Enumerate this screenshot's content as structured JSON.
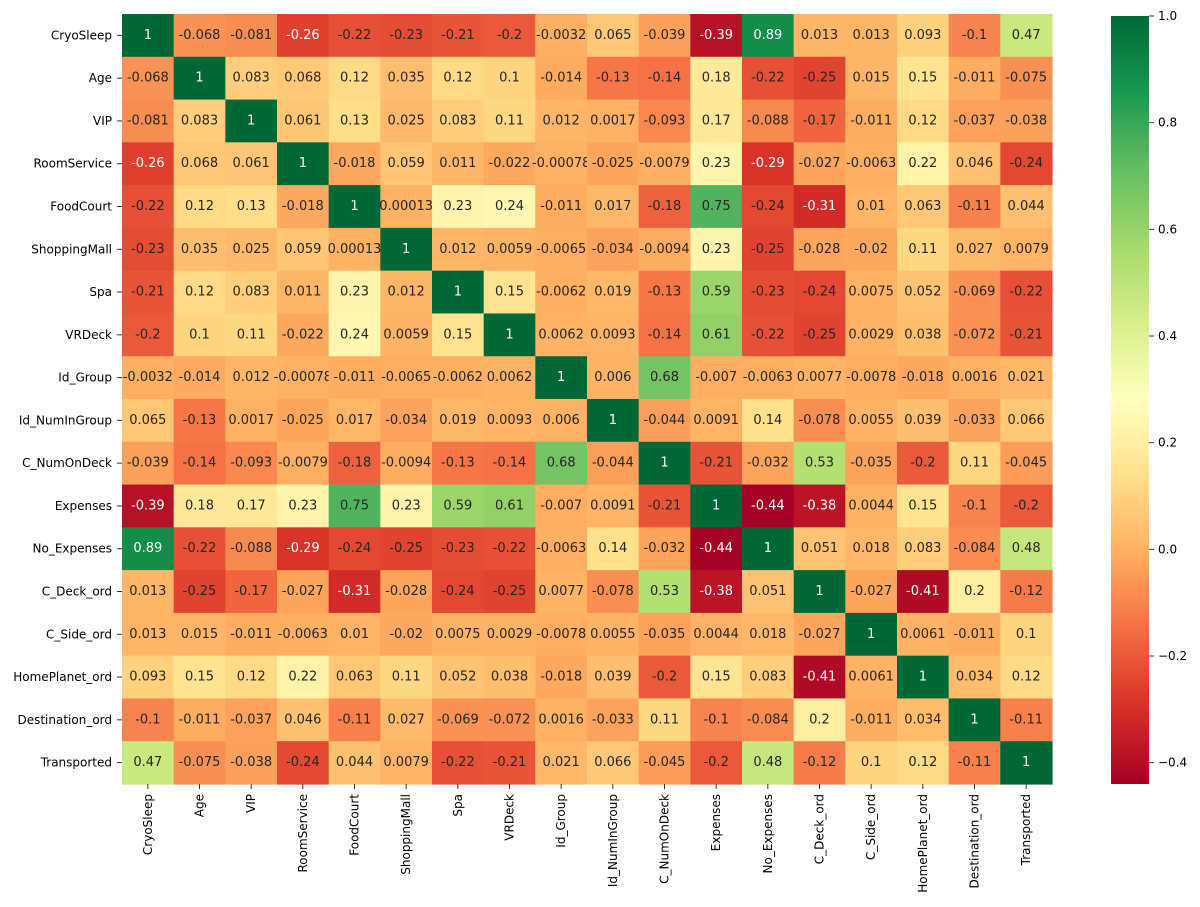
{
  "chart_data": {
    "type": "heatmap",
    "title": "",
    "xlabel": "",
    "ylabel": "",
    "colormap": "RdYlGn",
    "value_range": [
      -0.44,
      1.0
    ],
    "labels": [
      "CryoSleep",
      "Age",
      "VIP",
      "RoomService",
      "FoodCourt",
      "ShoppingMall",
      "Spa",
      "VRDeck",
      "Id_Group",
      "Id_NumInGroup",
      "C_NumOnDeck",
      "Expenses",
      "No_Expenses",
      "C_Deck_ord",
      "C_Side_ord",
      "HomePlanet_ord",
      "Destination_ord",
      "Transported"
    ],
    "matrix": [
      [
        1,
        -0.068,
        -0.081,
        -0.26,
        -0.22,
        -0.23,
        -0.21,
        -0.2,
        -0.0032,
        0.065,
        -0.039,
        -0.39,
        0.89,
        0.013,
        0.013,
        0.093,
        -0.1,
        0.47
      ],
      [
        -0.068,
        1,
        0.083,
        0.068,
        0.12,
        0.035,
        0.12,
        0.1,
        -0.014,
        -0.13,
        -0.14,
        0.18,
        -0.22,
        -0.25,
        0.015,
        0.15,
        -0.011,
        -0.075
      ],
      [
        -0.081,
        0.083,
        1,
        0.061,
        0.13,
        0.025,
        0.083,
        0.11,
        0.012,
        0.0017,
        -0.093,
        0.17,
        -0.088,
        -0.17,
        -0.011,
        0.12,
        -0.037,
        -0.038
      ],
      [
        -0.26,
        0.068,
        0.061,
        1,
        -0.018,
        0.059,
        0.011,
        -0.022,
        -0.00078,
        -0.025,
        -0.0079,
        0.23,
        -0.29,
        -0.027,
        -0.0063,
        0.22,
        0.046,
        -0.24
      ],
      [
        -0.22,
        0.12,
        0.13,
        -0.018,
        1,
        0.00013,
        0.23,
        0.24,
        -0.011,
        0.017,
        -0.18,
        0.75,
        -0.24,
        -0.31,
        0.01,
        0.063,
        -0.11,
        0.044
      ],
      [
        -0.23,
        0.035,
        0.025,
        0.059,
        0.00013,
        1,
        0.012,
        0.0059,
        -0.0065,
        -0.034,
        -0.0094,
        0.23,
        -0.25,
        -0.028,
        -0.02,
        0.11,
        0.027,
        0.0079
      ],
      [
        -0.21,
        0.12,
        0.083,
        0.011,
        0.23,
        0.012,
        1,
        0.15,
        -0.0062,
        0.019,
        -0.13,
        0.59,
        -0.23,
        -0.24,
        0.0075,
        0.052,
        -0.069,
        -0.22
      ],
      [
        -0.2,
        0.1,
        0.11,
        -0.022,
        0.24,
        0.0059,
        0.15,
        1,
        0.0062,
        0.0093,
        -0.14,
        0.61,
        -0.22,
        -0.25,
        0.0029,
        0.038,
        -0.072,
        -0.21
      ],
      [
        -0.0032,
        -0.014,
        0.012,
        -0.00078,
        -0.011,
        -0.0065,
        -0.0062,
        0.0062,
        1,
        0.006,
        0.68,
        -0.007,
        -0.0063,
        0.0077,
        -0.0078,
        -0.018,
        0.0016,
        0.021
      ],
      [
        0.065,
        -0.13,
        0.0017,
        -0.025,
        0.017,
        -0.034,
        0.019,
        0.0093,
        0.006,
        1,
        -0.044,
        0.0091,
        0.14,
        -0.078,
        0.0055,
        0.039,
        -0.033,
        0.066
      ],
      [
        -0.039,
        -0.14,
        -0.093,
        -0.0079,
        -0.18,
        -0.0094,
        -0.13,
        -0.14,
        0.68,
        -0.044,
        1,
        -0.21,
        -0.032,
        0.53,
        -0.035,
        -0.2,
        0.11,
        -0.045
      ],
      [
        -0.39,
        0.18,
        0.17,
        0.23,
        0.75,
        0.23,
        0.59,
        0.61,
        -0.007,
        0.0091,
        -0.21,
        1,
        -0.44,
        -0.38,
        0.0044,
        0.15,
        -0.1,
        -0.2
      ],
      [
        0.89,
        -0.22,
        -0.088,
        -0.29,
        -0.24,
        -0.25,
        -0.23,
        -0.22,
        -0.0063,
        0.14,
        -0.032,
        -0.44,
        1,
        0.051,
        0.018,
        0.083,
        -0.084,
        0.48
      ],
      [
        0.013,
        -0.25,
        -0.17,
        -0.027,
        -0.31,
        -0.028,
        -0.24,
        -0.25,
        0.0077,
        -0.078,
        0.53,
        -0.38,
        0.051,
        1,
        -0.027,
        -0.41,
        0.2,
        -0.12
      ],
      [
        0.013,
        0.015,
        -0.011,
        -0.0063,
        0.01,
        -0.02,
        0.0075,
        0.0029,
        -0.0078,
        0.0055,
        -0.035,
        0.0044,
        0.018,
        -0.027,
        1,
        0.0061,
        -0.011,
        0.1
      ],
      [
        0.093,
        0.15,
        0.12,
        0.22,
        0.063,
        0.11,
        0.052,
        0.038,
        -0.018,
        0.039,
        -0.2,
        0.15,
        0.083,
        -0.41,
        0.0061,
        1,
        0.034,
        0.12
      ],
      [
        -0.1,
        -0.011,
        -0.037,
        0.046,
        -0.11,
        0.027,
        -0.069,
        -0.072,
        0.0016,
        -0.033,
        0.11,
        -0.1,
        -0.084,
        0.2,
        -0.011,
        0.034,
        1,
        -0.11
      ],
      [
        0.47,
        -0.075,
        -0.038,
        -0.24,
        0.044,
        0.0079,
        -0.22,
        -0.21,
        0.021,
        0.066,
        -0.045,
        -0.2,
        0.48,
        -0.12,
        0.1,
        0.12,
        -0.11,
        1
      ]
    ],
    "colorbar": {
      "ticks": [
        -0.4,
        -0.2,
        0.0,
        0.2,
        0.4,
        0.6,
        0.8,
        1.0
      ],
      "tick_labels": [
        "−0.4",
        "−0.2",
        "0.0",
        "0.2",
        "0.4",
        "0.6",
        "0.8",
        "1.0"
      ]
    }
  }
}
